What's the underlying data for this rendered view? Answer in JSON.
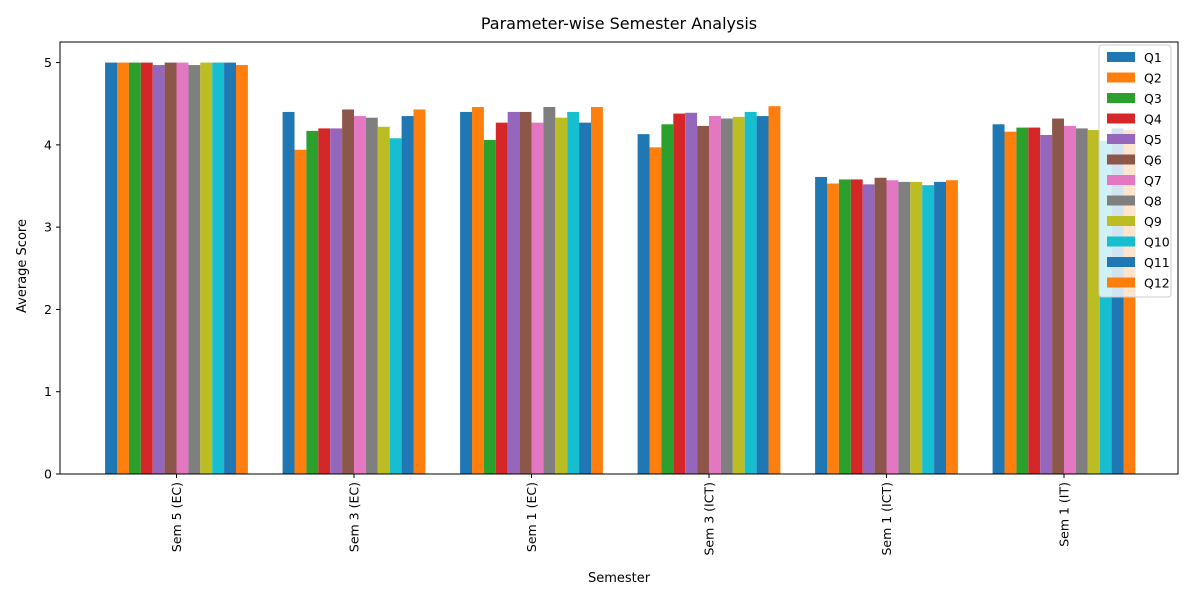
{
  "chart_data": {
    "type": "bar",
    "title": "Parameter-wise Semester Analysis",
    "xlabel": "Semester",
    "ylabel": "Average Score",
    "ylim": [
      0,
      5.25
    ],
    "yticks": [
      "0",
      "1",
      "2",
      "3",
      "4",
      "5"
    ],
    "grid": false,
    "legend_position": "top-right",
    "categories": [
      "Sem 5 (EC)",
      "Sem 3 (EC)",
      "Sem 1 (EC)",
      "Sem 3 (ICT)",
      "Sem 1 (ICT)",
      "Sem 1 (IT)"
    ],
    "series": [
      {
        "name": "Q1",
        "color": "#1f77b4",
        "values": [
          5.0,
          4.4,
          4.4,
          4.13,
          3.61,
          4.25
        ]
      },
      {
        "name": "Q2",
        "color": "#ff7f0e",
        "values": [
          5.0,
          3.94,
          4.46,
          3.97,
          3.53,
          4.16
        ]
      },
      {
        "name": "Q3",
        "color": "#2ca02c",
        "values": [
          5.0,
          4.17,
          4.06,
          4.25,
          3.58,
          4.21
        ]
      },
      {
        "name": "Q4",
        "color": "#d62728",
        "values": [
          5.0,
          4.2,
          4.27,
          4.38,
          3.58,
          4.21
        ]
      },
      {
        "name": "Q5",
        "color": "#9467bd",
        "values": [
          4.97,
          4.2,
          4.4,
          4.39,
          3.52,
          4.12
        ]
      },
      {
        "name": "Q6",
        "color": "#8c564b",
        "values": [
          5.0,
          4.43,
          4.4,
          4.23,
          3.6,
          4.32
        ]
      },
      {
        "name": "Q7",
        "color": "#e377c2",
        "values": [
          5.0,
          4.35,
          4.27,
          4.35,
          3.57,
          4.23
        ]
      },
      {
        "name": "Q8",
        "color": "#7f7f7f",
        "values": [
          4.97,
          4.33,
          4.46,
          4.32,
          3.55,
          4.2
        ]
      },
      {
        "name": "Q9",
        "color": "#bcbd22",
        "values": [
          5.0,
          4.22,
          4.33,
          4.34,
          3.55,
          4.18
        ]
      },
      {
        "name": "Q10",
        "color": "#17becf",
        "values": [
          5.0,
          4.08,
          4.4,
          4.4,
          3.51,
          4.05
        ]
      },
      {
        "name": "Q11",
        "color": "#1f77b4",
        "values": [
          5.0,
          4.35,
          4.27,
          4.35,
          3.55,
          4.2
        ]
      },
      {
        "name": "Q12",
        "color": "#ff7f0e",
        "values": [
          4.97,
          4.43,
          4.46,
          4.47,
          3.57,
          4.18
        ]
      }
    ]
  }
}
